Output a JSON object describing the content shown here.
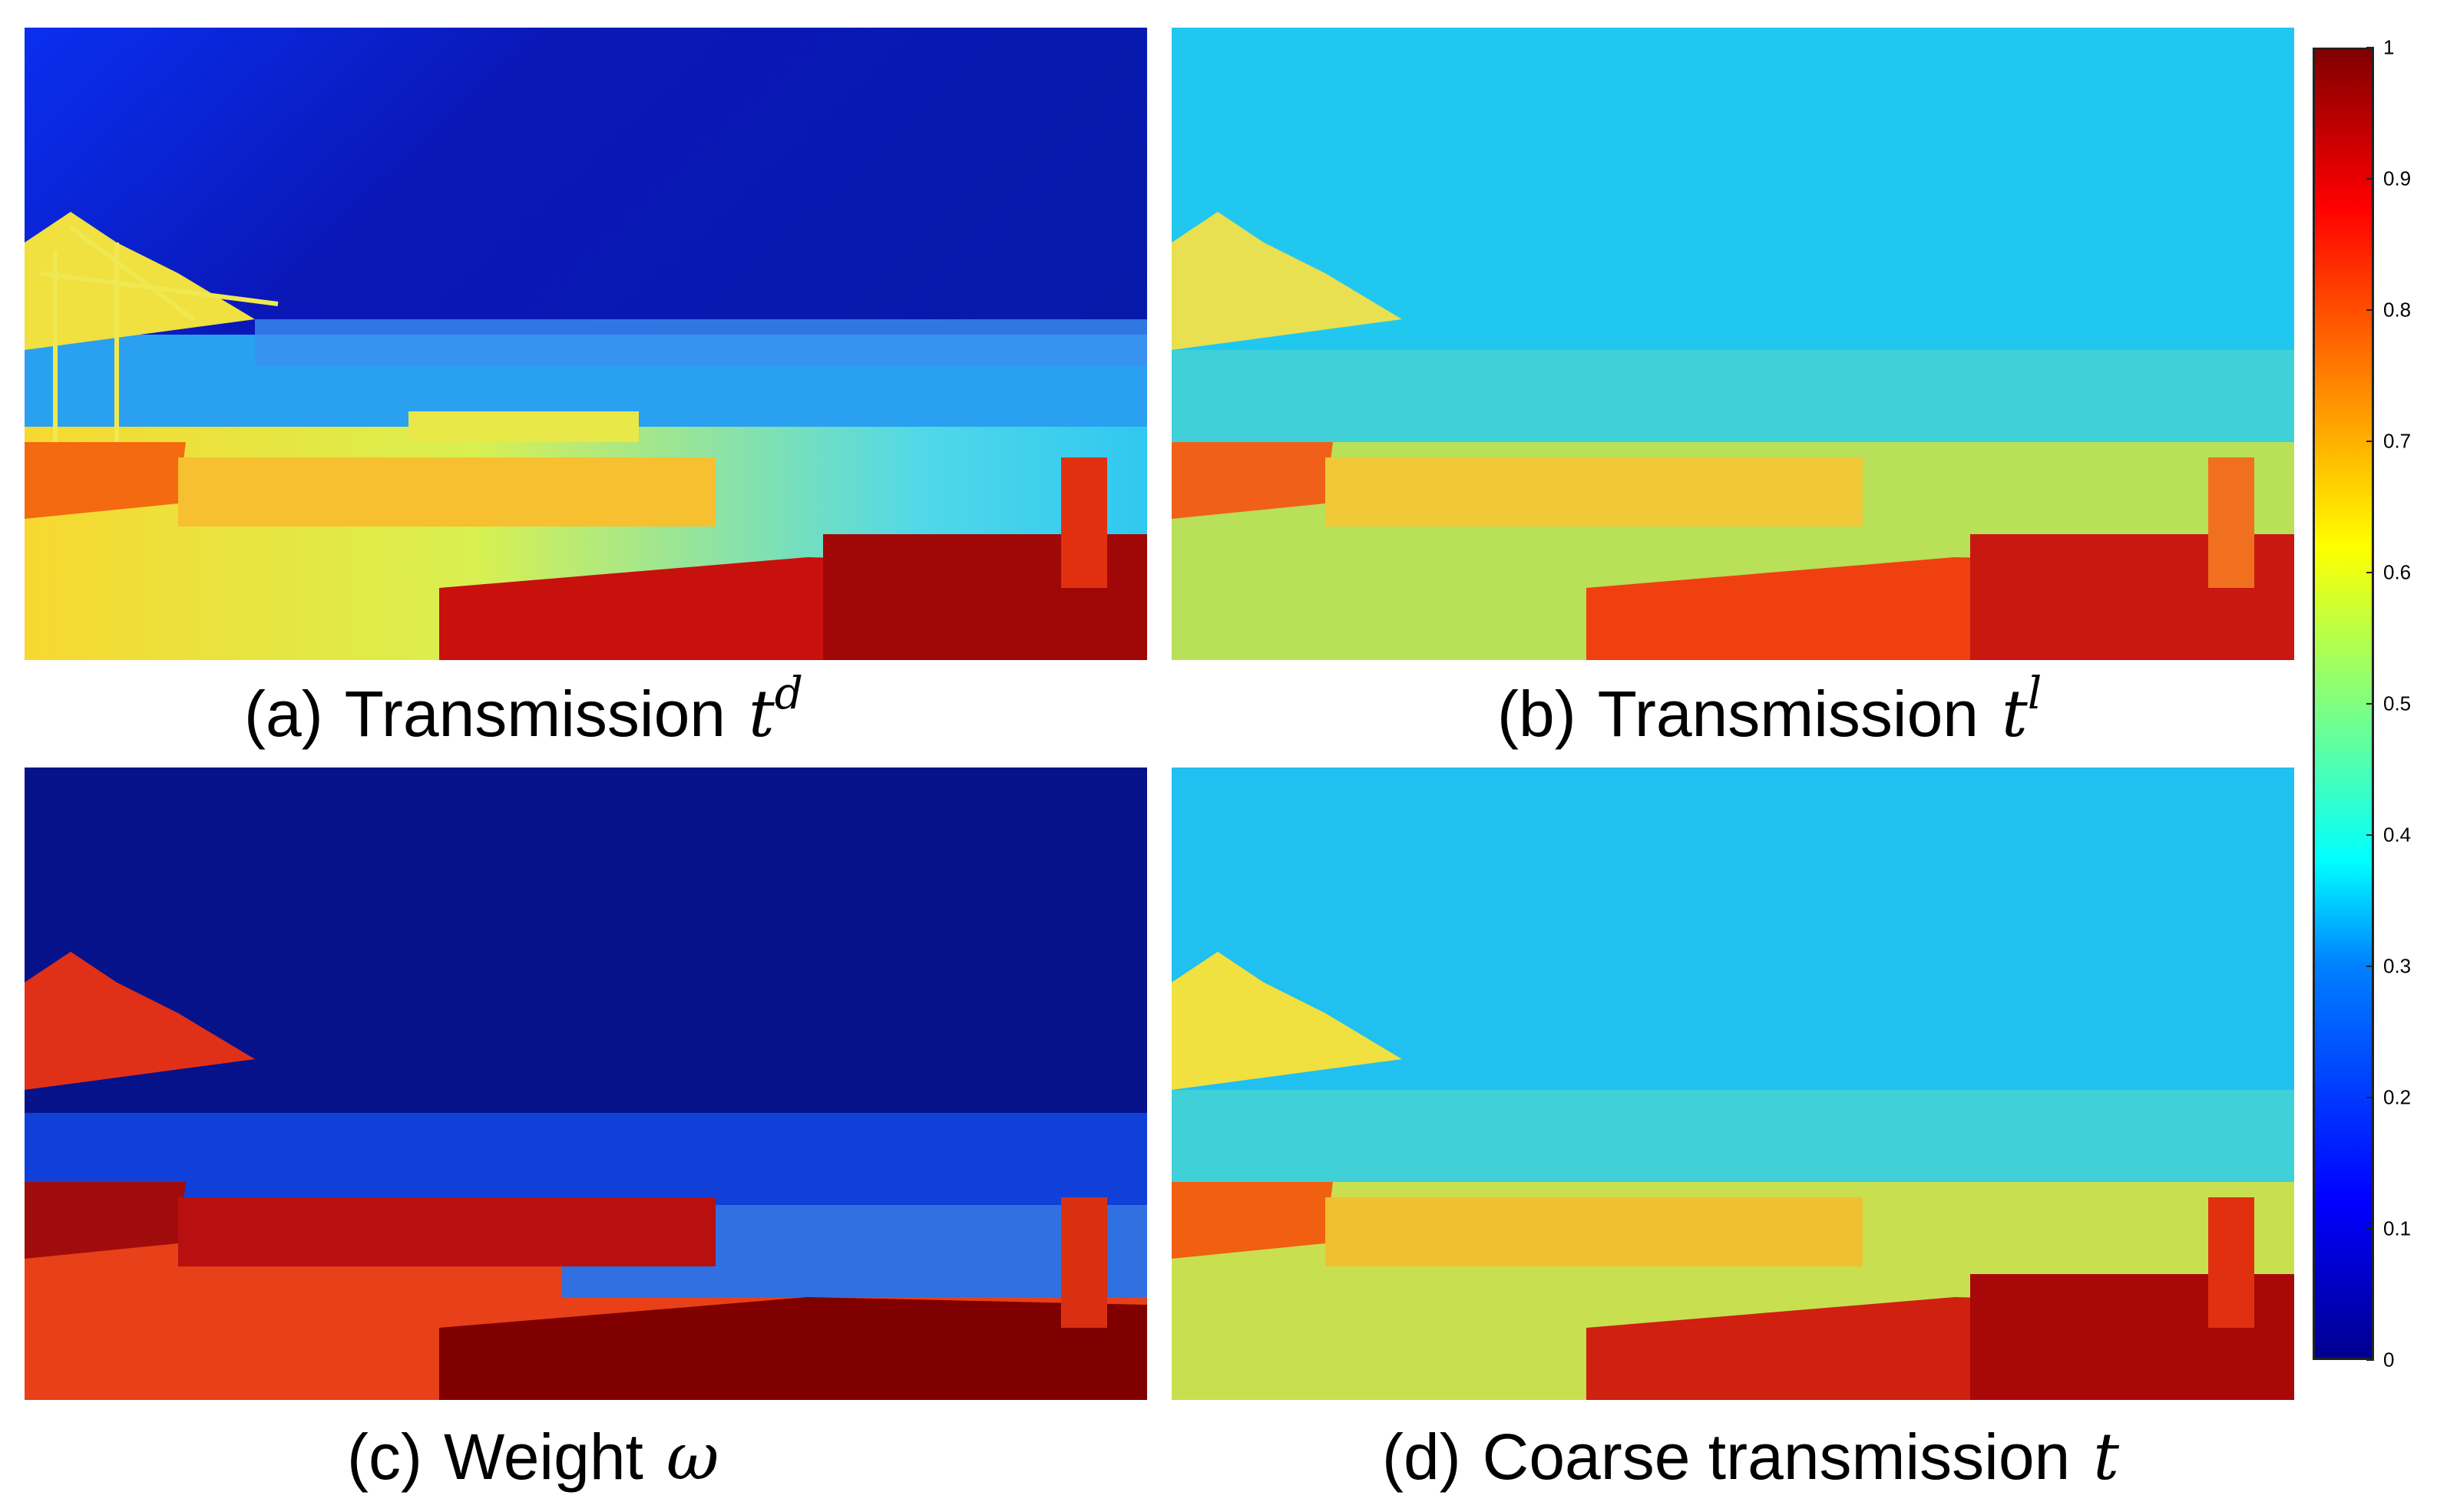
{
  "panels": [
    {
      "label": "(a)",
      "title": "Transmission",
      "symbol": "t",
      "superscript": "d"
    },
    {
      "label": "(b)",
      "title": "Transmission",
      "symbol": "t",
      "superscript": "l"
    },
    {
      "label": "(c)",
      "title": "Weight",
      "symbol": "ω",
      "superscript": ""
    },
    {
      "label": "(d)",
      "title": "Coarse transmission",
      "symbol": "t",
      "superscript": ""
    }
  ],
  "colorbar": {
    "ticks": [
      "0",
      "0.1",
      "0.2",
      "0.3",
      "0.4",
      "0.5",
      "0.6",
      "0.7",
      "0.8",
      "0.9",
      "1"
    ],
    "min": 0,
    "max": 1
  },
  "colors": {
    "jet_dark_blue": "#00008f",
    "jet_blue": "#0000ff",
    "jet_cyan": "#00ffff",
    "jet_yellow": "#ffff00",
    "jet_red": "#ff0000",
    "jet_dark_red": "#800000"
  }
}
